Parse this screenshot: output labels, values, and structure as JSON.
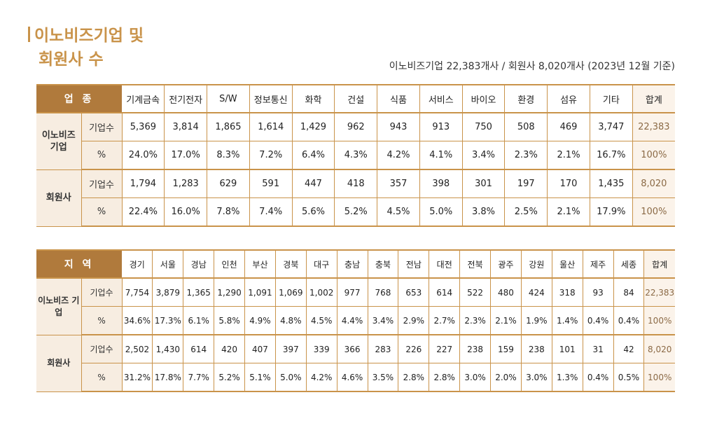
{
  "title": {
    "line1": "이노비즈기업 및",
    "line2": "회원사 수"
  },
  "subtitle": "이노비즈기업 22,383개사 / 회원사 8,020개사 (2023년 12월 기준)",
  "table_industry": {
    "corner": "업 종",
    "columns": [
      "기계금속",
      "전기전자",
      "S/W",
      "정보통신",
      "화학",
      "건설",
      "식품",
      "서비스",
      "바이오",
      "환경",
      "섬유",
      "기타",
      "합계"
    ],
    "groups": [
      {
        "name": "이노비즈 기업",
        "rows": [
          {
            "label": "기업수",
            "values": [
              "5,369",
              "3,814",
              "1,865",
              "1,614",
              "1,429",
              "962",
              "943",
              "913",
              "750",
              "508",
              "469",
              "3,747",
              "22,383"
            ]
          },
          {
            "label": "%",
            "values": [
              "24.0%",
              "17.0%",
              "8.3%",
              "7.2%",
              "6.4%",
              "4.3%",
              "4.2%",
              "4.1%",
              "3.4%",
              "2.3%",
              "2.1%",
              "16.7%",
              "100%"
            ]
          }
        ]
      },
      {
        "name": "회원사",
        "rows": [
          {
            "label": "기업수",
            "values": [
              "1,794",
              "1,283",
              "629",
              "591",
              "447",
              "418",
              "357",
              "398",
              "301",
              "197",
              "170",
              "1,435",
              "8,020"
            ]
          },
          {
            "label": "%",
            "values": [
              "22.4%",
              "16.0%",
              "7.8%",
              "7.4%",
              "5.6%",
              "5.2%",
              "4.5%",
              "5.0%",
              "3.8%",
              "2.5%",
              "2.1%",
              "17.9%",
              "100%"
            ]
          }
        ]
      }
    ]
  },
  "table_region": {
    "corner": "지 역",
    "columns": [
      "경기",
      "서울",
      "경남",
      "인천",
      "부산",
      "경북",
      "대구",
      "충남",
      "충북",
      "전남",
      "대전",
      "전북",
      "광주",
      "강원",
      "울산",
      "제주",
      "세종",
      "합계"
    ],
    "groups": [
      {
        "name": "이노비즈 기업",
        "rows": [
          {
            "label": "기업수",
            "values": [
              "7,754",
              "3,879",
              "1,365",
              "1,290",
              "1,091",
              "1,069",
              "1,002",
              "977",
              "768",
              "653",
              "614",
              "522",
              "480",
              "424",
              "318",
              "93",
              "84",
              "22,383"
            ]
          },
          {
            "label": "%",
            "values": [
              "34.6%",
              "17.3%",
              "6.1%",
              "5.8%",
              "4.9%",
              "4.8%",
              "4.5%",
              "4.4%",
              "3.4%",
              "2.9%",
              "2.7%",
              "2.3%",
              "2.1%",
              "1.9%",
              "1.4%",
              "0.4%",
              "0.4%",
              "100%"
            ]
          }
        ]
      },
      {
        "name": "회원사",
        "rows": [
          {
            "label": "기업수",
            "values": [
              "2,502",
              "1,430",
              "614",
              "420",
              "407",
              "397",
              "339",
              "366",
              "283",
              "226",
              "227",
              "238",
              "159",
              "238",
              "101",
              "31",
              "42",
              "8,020"
            ]
          },
          {
            "label": "%",
            "values": [
              "31.2%",
              "17.8%",
              "7.7%",
              "5.2%",
              "5.1%",
              "5.0%",
              "4.2%",
              "4.6%",
              "3.5%",
              "2.8%",
              "2.8%",
              "3.0%",
              "2.0%",
              "3.0%",
              "1.3%",
              "0.4%",
              "0.5%",
              "100%"
            ]
          }
        ]
      }
    ]
  }
}
